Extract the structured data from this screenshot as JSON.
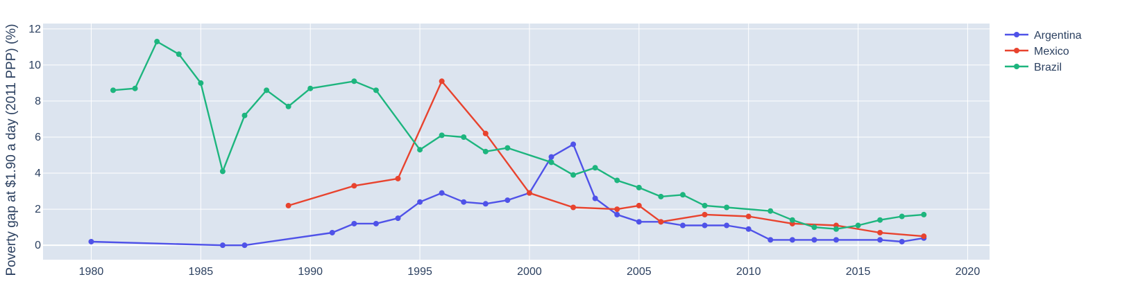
{
  "chart_data": {
    "type": "line",
    "title": "",
    "xlabel": "",
    "ylabel": "Poverty gap at $1.90 a day (2011 PPP) (%)",
    "xlim": [
      1977.8,
      2021.0
    ],
    "ylim": [
      -0.8,
      12.3
    ],
    "xticks": [
      1980,
      1985,
      1990,
      1995,
      2000,
      2005,
      2010,
      2015,
      2020
    ],
    "yticks": [
      0,
      2,
      4,
      6,
      8,
      10,
      12
    ],
    "grid": true,
    "legend_position": "top-right",
    "plot_background": "#dce4ef",
    "series": [
      {
        "name": "Argentina",
        "color": "#4f52e8",
        "x": [
          1980,
          1986,
          1987,
          1991,
          1992,
          1993,
          1994,
          1995,
          1996,
          1997,
          1998,
          1999,
          2000,
          2001,
          2002,
          2003,
          2004,
          2005,
          2006,
          2007,
          2008,
          2009,
          2010,
          2011,
          2012,
          2013,
          2014,
          2016,
          2017,
          2018
        ],
        "y": [
          0.2,
          0.0,
          0.0,
          0.7,
          1.2,
          1.2,
          1.5,
          2.4,
          2.9,
          2.4,
          2.3,
          2.5,
          2.9,
          4.9,
          5.6,
          2.6,
          1.7,
          1.3,
          1.3,
          1.1,
          1.1,
          1.1,
          0.9,
          0.3,
          0.3,
          0.3,
          0.3,
          0.3,
          0.2,
          0.4
        ]
      },
      {
        "name": "Mexico",
        "color": "#e8432e",
        "x": [
          1989,
          1992,
          1994,
          1996,
          1998,
          2000,
          2002,
          2004,
          2005,
          2006,
          2008,
          2010,
          2012,
          2014,
          2016,
          2018
        ],
        "y": [
          2.2,
          3.3,
          3.7,
          9.1,
          6.2,
          2.9,
          2.1,
          2.0,
          2.2,
          1.3,
          1.7,
          1.6,
          1.2,
          1.1,
          0.7,
          0.5
        ]
      },
      {
        "name": "Brazil",
        "color": "#1db57e",
        "x": [
          1981,
          1982,
          1983,
          1984,
          1985,
          1986,
          1987,
          1988,
          1989,
          1990,
          1992,
          1993,
          1995,
          1996,
          1997,
          1998,
          1999,
          2001,
          2002,
          2003,
          2004,
          2005,
          2006,
          2007,
          2008,
          2009,
          2011,
          2012,
          2013,
          2014,
          2015,
          2016,
          2017,
          2018
        ],
        "y": [
          8.6,
          8.7,
          11.3,
          10.6,
          9.0,
          4.1,
          7.2,
          8.6,
          7.7,
          8.7,
          9.1,
          8.6,
          5.3,
          6.1,
          6.0,
          5.2,
          5.4,
          4.6,
          3.9,
          4.3,
          3.6,
          3.2,
          2.7,
          2.8,
          2.2,
          2.1,
          1.9,
          1.4,
          1.0,
          0.9,
          1.1,
          1.4,
          1.6,
          1.7
        ]
      }
    ]
  }
}
